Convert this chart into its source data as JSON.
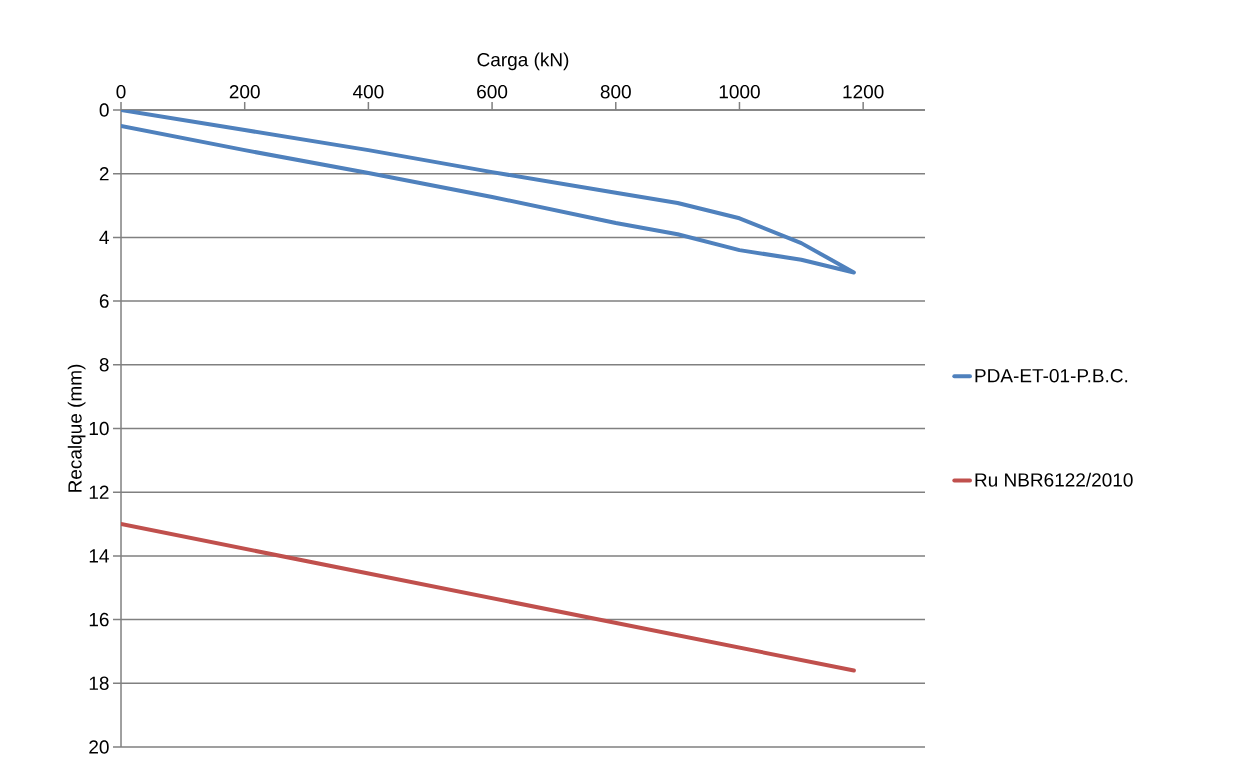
{
  "chart_data": {
    "type": "line",
    "xlabel": "Carga (kN)",
    "ylabel": "Recalque (mm)",
    "xlim": [
      0,
      1300
    ],
    "xticks": [
      0,
      200,
      400,
      600,
      800,
      1000,
      1200
    ],
    "ylim": [
      20,
      0
    ],
    "yticks": [
      0,
      2,
      4,
      6,
      8,
      10,
      12,
      14,
      16,
      18,
      20
    ],
    "grid": "y",
    "legend": "right",
    "marker": "none",
    "line_style": "solid",
    "series": [
      {
        "name": "PDA-ET-01-P.B.C.",
        "color": "#4f81bd",
        "x": [
          0,
          200,
          400,
          600,
          800,
          900,
          1000,
          1100,
          1185,
          1100,
          1000,
          900,
          800,
          600,
          400,
          200,
          0
        ],
        "values": [
          0,
          0.63,
          1.26,
          1.95,
          2.6,
          2.92,
          3.4,
          4.18,
          5.1,
          4.7,
          4.4,
          3.9,
          3.55,
          2.73,
          1.98,
          1.26,
          0.5
        ]
      },
      {
        "name": "Ru NBR6122/2010",
        "color": "#c0504d",
        "x": [
          0,
          1185
        ],
        "values": [
          13,
          17.6
        ]
      }
    ]
  }
}
